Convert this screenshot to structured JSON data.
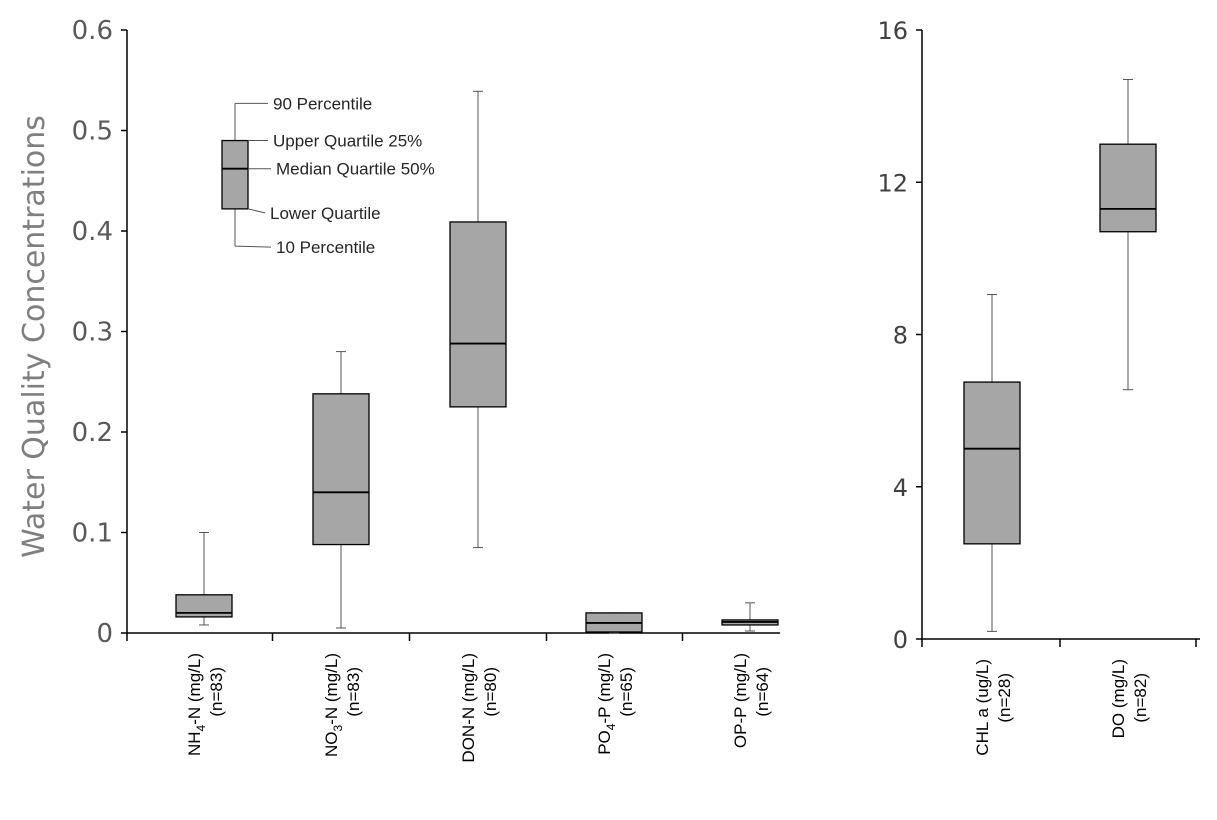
{
  "chart_data": [
    {
      "type": "box",
      "panel": "left",
      "ylabel": "Water Quality Concentrations",
      "ylim": [
        0,
        0.6
      ],
      "yticks": [
        "0",
        "0.1",
        "0.2",
        "0.3",
        "0.4",
        "0.5",
        "0.6"
      ],
      "boxes": [
        {
          "label": "NH4-N (mg/L)",
          "label_main": "NH",
          "label_sub": "4",
          "label_rest": "-N (mg/L)",
          "n_label": "(n=83)",
          "p10": 0.008,
          "q1": 0.016,
          "median": 0.02,
          "q3": 0.038,
          "p90": 0.1
        },
        {
          "label": "NO3-N (mg/L)",
          "label_main": "NO",
          "label_sub": "3",
          "label_rest": "-N (mg/L)",
          "n_label": "(n=83)",
          "p10": 0.005,
          "q1": 0.088,
          "median": 0.14,
          "q3": 0.238,
          "p90": 0.28
        },
        {
          "label": "DON-N (mg/L)",
          "label_main": "DON-N (mg/L)",
          "label_sub": "",
          "label_rest": "",
          "n_label": "(n=80)",
          "p10": 0.085,
          "q1": 0.225,
          "median": 0.288,
          "q3": 0.409,
          "p90": 0.539
        },
        {
          "label": "PO4-P (mg/L)",
          "label_main": "PO",
          "label_sub": "4",
          "label_rest": "-P (mg/L)",
          "n_label": "(n=65)",
          "p10": 0.0,
          "q1": 0.001,
          "median": 0.01,
          "q3": 0.02,
          "p90": 0.02
        },
        {
          "label": "OP-P (mg/L)",
          "label_main": "OP-P (mg/L)",
          "label_sub": "",
          "label_rest": "",
          "n_label": "(n=64)",
          "p10": 0.002,
          "q1": 0.008,
          "median": 0.011,
          "q3": 0.013,
          "p90": 0.03
        }
      ],
      "legend": {
        "example": {
          "p10": 0.385,
          "q1": 0.422,
          "median": 0.462,
          "q3": 0.49,
          "p90": 0.527
        },
        "labels": [
          "90 Percentile",
          "Upper Quartile 25%",
          "Median Quartile 50%",
          "Lower Quartile",
          "10 Percentile"
        ]
      }
    },
    {
      "type": "box",
      "panel": "right",
      "ylim": [
        0,
        16
      ],
      "yticks": [
        "0",
        "4",
        "8",
        "12",
        "16"
      ],
      "boxes": [
        {
          "label": "CHL a (ug/L)",
          "label_main": "CHL a (ug/L)",
          "label_sub": "",
          "label_rest": "",
          "n_label": "(n=28)",
          "p10": 0.2,
          "q1": 2.5,
          "median": 5.0,
          "q3": 6.75,
          "p90": 9.05
        },
        {
          "label": "DO (mg/L)",
          "label_main": "DO (mg/L)",
          "label_sub": "",
          "label_rest": "",
          "n_label": "(n=82)",
          "p10": 6.55,
          "q1": 10.7,
          "median": 11.3,
          "q3": 13.0,
          "p90": 14.7
        }
      ]
    }
  ]
}
